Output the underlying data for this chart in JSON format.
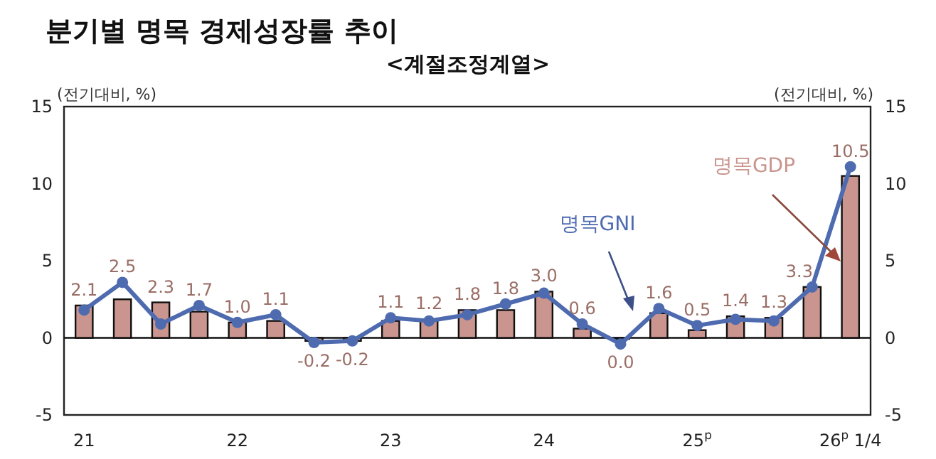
{
  "chart_data": {
    "type": "bar",
    "title": "분기별 명목 경제성장률 추이",
    "subtitle": "<계절조정계열>",
    "ylabel": "(전기대비, %)",
    "y2label": "(전기대비, %)",
    "categories": [
      "21",
      null,
      null,
      null,
      "22",
      null,
      null,
      null,
      "23",
      null,
      null,
      null,
      "24",
      null,
      null,
      null,
      "25$^{p}$",
      null,
      null,
      null,
      "26$^{p}$ 1/4"
    ],
    "series": [
      {
        "name": "명목GDP",
        "color": "#c9958e",
        "values": [
          2.1,
          2.5,
          2.3,
          1.7,
          1.0,
          1.1,
          -0.2,
          -0.2,
          1.1,
          1.2,
          1.8,
          1.8,
          3.0,
          0.6,
          0.0,
          1.6,
          0.5,
          1.4,
          1.3,
          3.3,
          10.5
        ],
        "value_labels": [
          "2.1",
          "2.5",
          "2.3",
          "1.7",
          "1.0",
          "1.1",
          "-0.2",
          "-0.2",
          "1.1",
          "1.2",
          "1.8",
          "1.8",
          "3.0",
          "0.6",
          "0.0",
          "1.6",
          "0.5",
          "1.4",
          "1.3",
          "3.3",
          "10.5"
        ]
      },
      {
        "name": "명목GNI",
        "type": "line",
        "color": "#4f6bb0",
        "marker": "circle",
        "values": [
          1.8,
          3.6,
          0.9,
          2.1,
          1.0,
          1.5,
          -0.3,
          -0.2,
          1.3,
          1.1,
          1.5,
          2.2,
          2.9,
          0.9,
          -0.4,
          1.9,
          0.8,
          1.2,
          1.1,
          3.3,
          11.1
        ]
      }
    ],
    "ylim": [
      -5,
      15
    ],
    "yticks": [
      -5,
      0,
      5,
      10,
      15
    ],
    "y2lim": [
      -5,
      15
    ],
    "y2ticks": [
      -5,
      0,
      5,
      10,
      15
    ]
  }
}
